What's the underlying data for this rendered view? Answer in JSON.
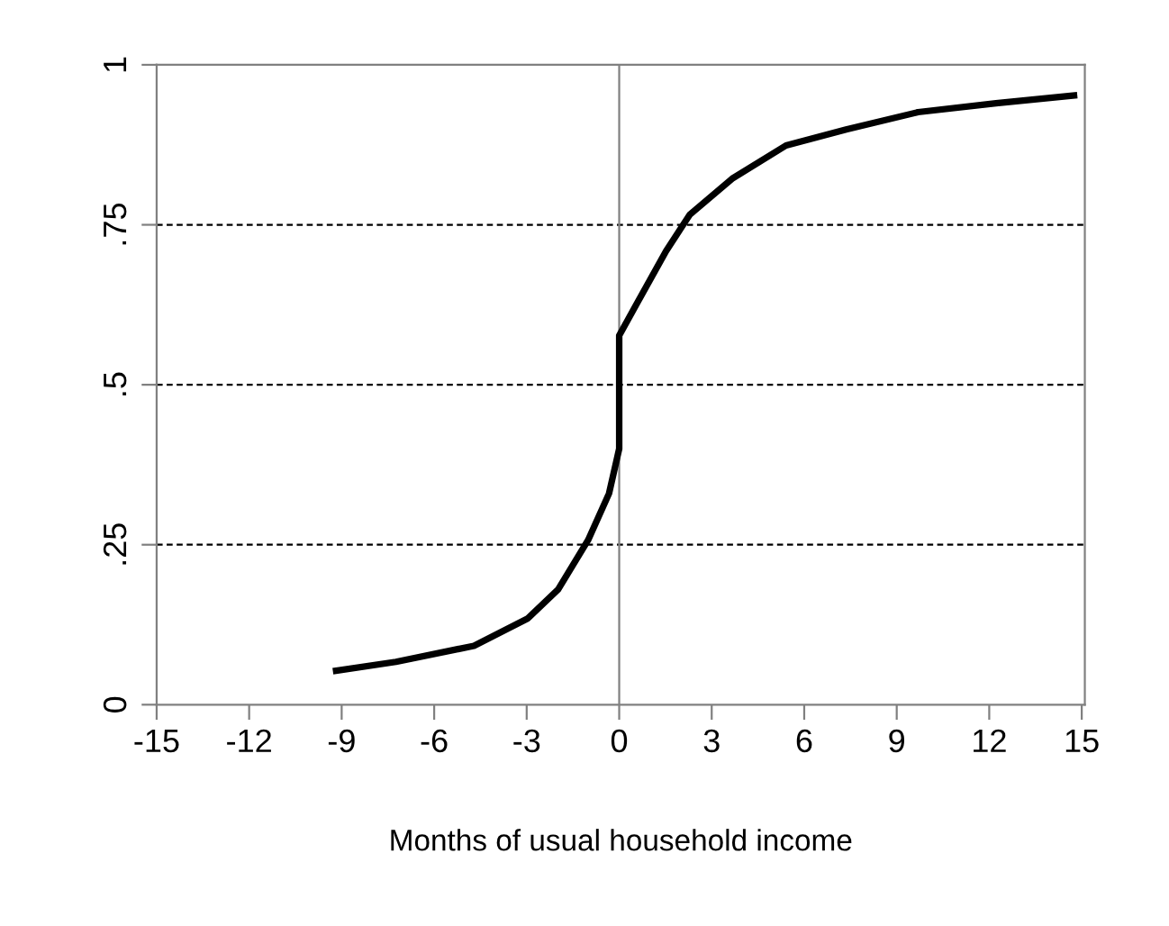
{
  "chart_data": {
    "type": "line",
    "xlabel": "Months of usual household income",
    "x": [
      -9.18,
      -7.24,
      -4.71,
      -2.96,
      -1.98,
      -1.01,
      -0.33,
      0,
      0,
      0.54,
      1.52,
      2.29,
      3.66,
      5.41,
      7.36,
      9.69,
      12.22,
      14.75
    ],
    "series": [
      {
        "color": "#000000",
        "values": [
          0.053,
          0.067,
          0.092,
          0.135,
          0.18,
          0.257,
          0.33,
          0.4,
          0.577,
          0.624,
          0.709,
          0.766,
          0.822,
          0.874,
          0.899,
          0.926,
          0.94,
          0.952
        ]
      }
    ],
    "xlim": [
      -15,
      15.1
    ],
    "xticks": [
      -15,
      -12,
      -9,
      -6,
      -3,
      0,
      3,
      6,
      9,
      12,
      15
    ],
    "ylim": [
      0,
      1
    ],
    "yticks": [
      0,
      {
        "value": 0.25,
        "label": ".25"
      },
      {
        "value": 0.5,
        "label": ".5"
      },
      {
        "value": 0.75,
        "label": ".75"
      },
      1
    ],
    "ref_lines": [
      {
        "axis": "y",
        "value": 0.25,
        "line_style": "dashed",
        "color": "#000000"
      },
      {
        "axis": "y",
        "value": 0.5,
        "line_style": "dashed",
        "color": "#000000"
      },
      {
        "axis": "y",
        "value": 0.75,
        "line_style": "dashed",
        "color": "#000000"
      },
      {
        "axis": "x",
        "value": 0,
        "line_style": "solid",
        "color": "#808080"
      }
    ],
    "grid": false,
    "legend": false,
    "marker": "none",
    "line_style": "solid"
  }
}
